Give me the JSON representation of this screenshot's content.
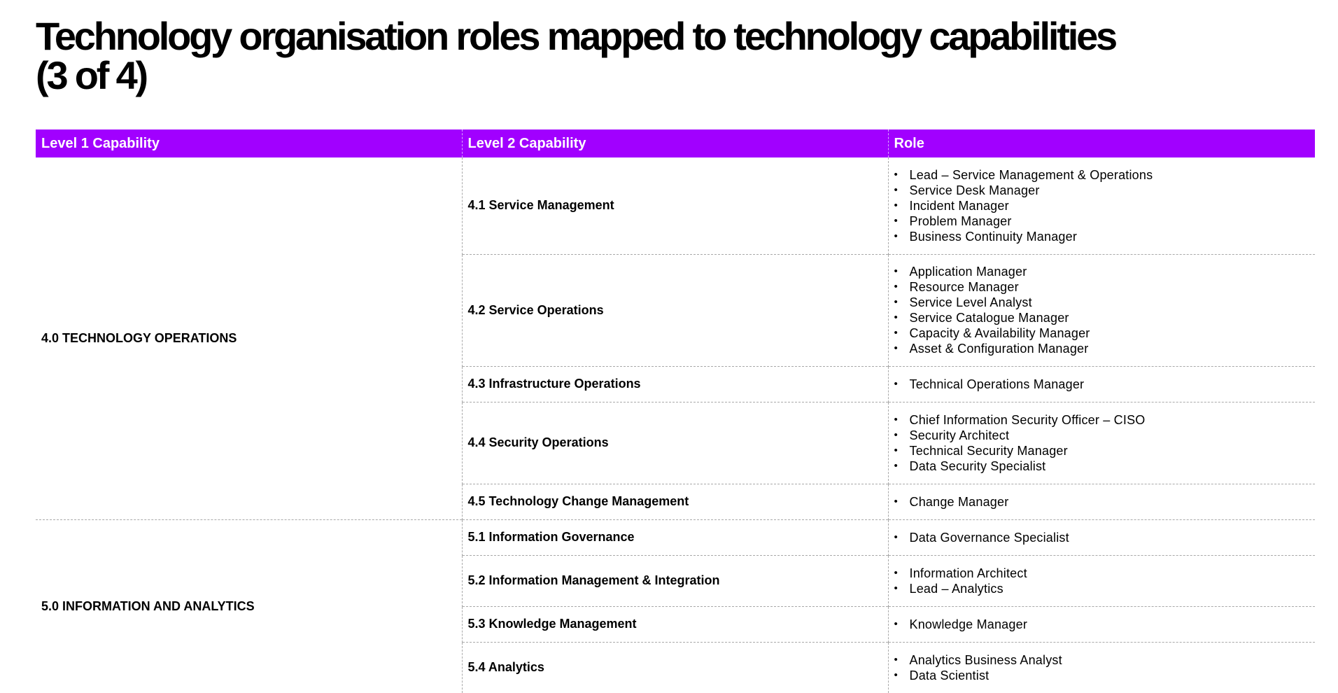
{
  "title_line1": "Technology organisation roles mapped to technology capabilities",
  "title_line2": "(3 of 4)",
  "headers": [
    "Level 1 Capability",
    "Level 2 Capability",
    "Role"
  ],
  "groups": [
    {
      "name": "4.0 TECHNOLOGY OPERATIONS",
      "rows": [
        {
          "cap": "4.1 Service Management",
          "roles": [
            "Lead – Service Management & Operations",
            "Service Desk Manager",
            "Incident Manager",
            "Problem Manager",
            "Business Continuity Manager"
          ]
        },
        {
          "cap": "4.2 Service Operations",
          "roles": [
            "Application Manager",
            "Resource Manager",
            "Service Level Analyst",
            "Service Catalogue Manager",
            "Capacity & Availability Manager",
            "Asset & Configuration Manager"
          ]
        },
        {
          "cap": "4.3 Infrastructure Operations",
          "roles": [
            "Technical Operations Manager"
          ]
        },
        {
          "cap": "4.4 Security Operations",
          "roles": [
            "Chief Information Security Officer – CISO",
            "Security Architect",
            "Technical Security Manager",
            "Data Security Specialist"
          ]
        },
        {
          "cap": "4.5 Technology Change Management",
          "roles": [
            "Change Manager"
          ]
        }
      ]
    },
    {
      "name": "5.0 INFORMATION AND ANALYTICS",
      "rows": [
        {
          "cap": "5.1 Information Governance",
          "roles": [
            "Data Governance Specialist"
          ]
        },
        {
          "cap": "5.2 Information Management & Integration",
          "roles": [
            "Information Architect",
            "Lead – Analytics"
          ]
        },
        {
          "cap": "5.3 Knowledge Management",
          "roles": [
            "Knowledge Manager"
          ]
        },
        {
          "cap": "5.4 Analytics",
          "roles": [
            "Analytics Business Analyst",
            "Data Scientist"
          ]
        }
      ]
    }
  ]
}
